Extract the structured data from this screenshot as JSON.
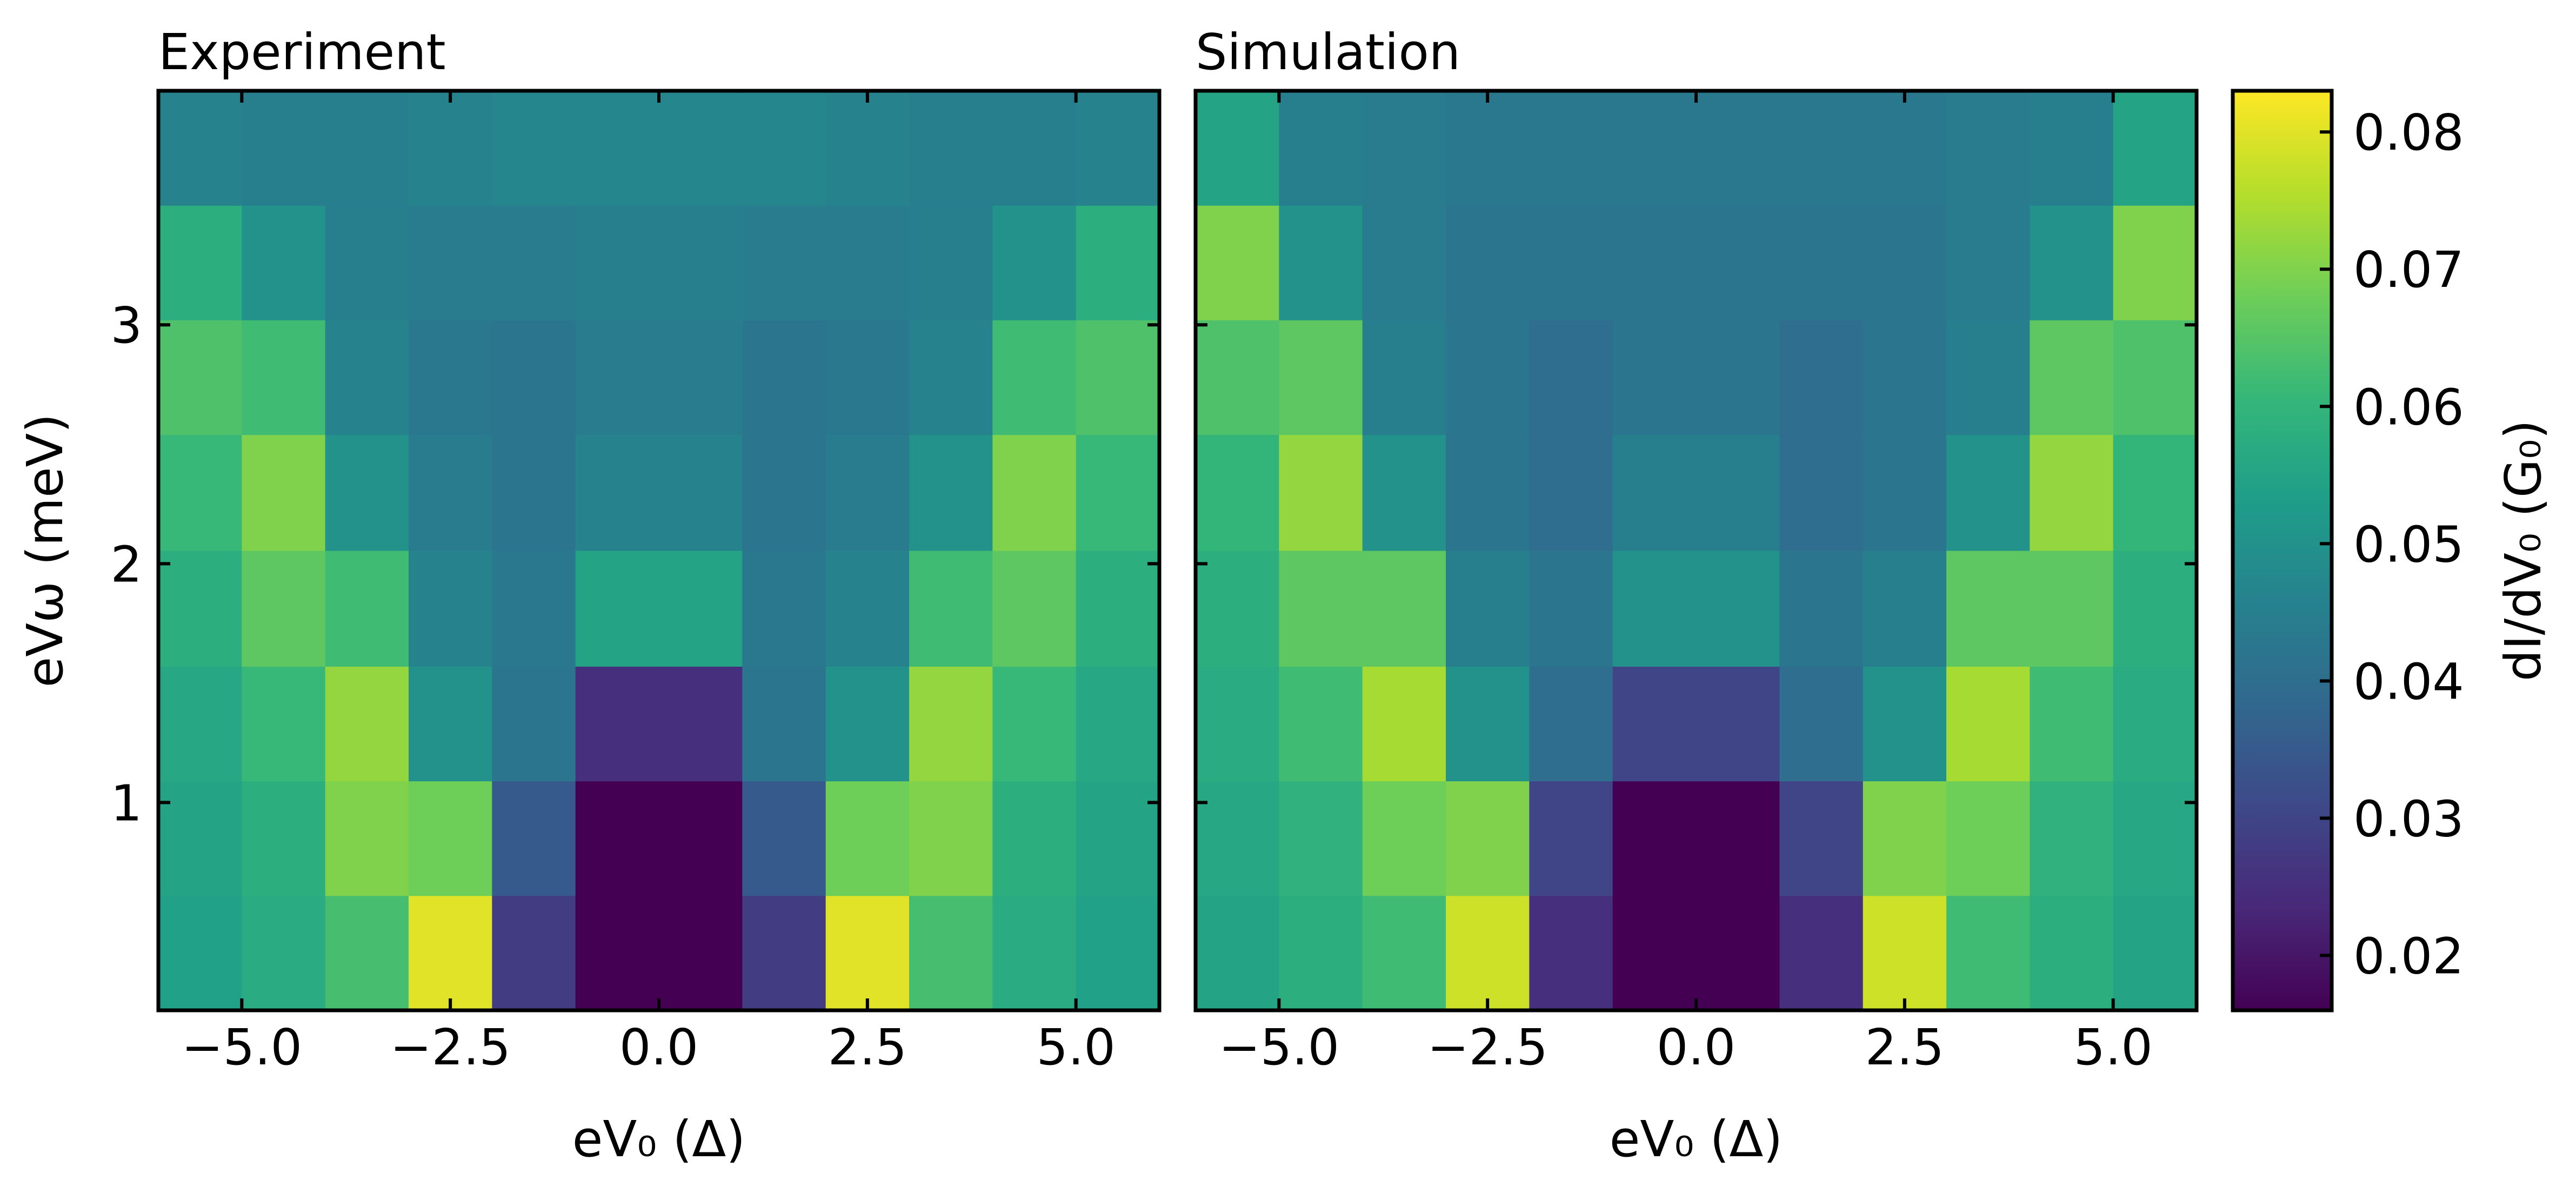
{
  "chart_data": [
    {
      "type": "heatmap",
      "title": "Experiment",
      "xlabel": "eV₀ (Δ)",
      "ylabel": "eVω (meV)",
      "x": [
        -5.5,
        -4.5,
        -3.5,
        -2.5,
        -1.5,
        -0.5,
        0.5,
        1.5,
        2.5,
        3.5,
        4.5,
        5.5
      ],
      "y": [
        0.37,
        0.85,
        1.33,
        1.81,
        2.3,
        2.78,
        3.26,
        3.74
      ],
      "values": [
        [
          0.054,
          0.057,
          0.063,
          0.08,
          0.028,
          0.016,
          0.016,
          0.028,
          0.08,
          0.063,
          0.057,
          0.054
        ],
        [
          0.055,
          0.058,
          0.07,
          0.068,
          0.035,
          0.016,
          0.016,
          0.035,
          0.068,
          0.07,
          0.058,
          0.055
        ],
        [
          0.056,
          0.061,
          0.072,
          0.05,
          0.042,
          0.025,
          0.025,
          0.042,
          0.05,
          0.072,
          0.061,
          0.056
        ],
        [
          0.058,
          0.066,
          0.062,
          0.046,
          0.043,
          0.055,
          0.055,
          0.043,
          0.046,
          0.062,
          0.066,
          0.058
        ],
        [
          0.061,
          0.07,
          0.05,
          0.044,
          0.042,
          0.046,
          0.046,
          0.042,
          0.044,
          0.05,
          0.07,
          0.061
        ],
        [
          0.064,
          0.062,
          0.046,
          0.043,
          0.042,
          0.044,
          0.044,
          0.042,
          0.043,
          0.046,
          0.062,
          0.064
        ],
        [
          0.058,
          0.05,
          0.045,
          0.044,
          0.044,
          0.045,
          0.045,
          0.044,
          0.044,
          0.045,
          0.05,
          0.058
        ],
        [
          0.046,
          0.045,
          0.045,
          0.046,
          0.047,
          0.047,
          0.047,
          0.047,
          0.046,
          0.045,
          0.045,
          0.046
        ]
      ],
      "xlim": [
        -6,
        6
      ],
      "ylim": [
        0.13,
        3.98
      ],
      "xticks": [
        {
          "value": -5,
          "label": "−5.0"
        },
        {
          "value": -2.5,
          "label": "−2.5"
        },
        {
          "value": 0,
          "label": "0.0"
        },
        {
          "value": 2.5,
          "label": "2.5"
        },
        {
          "value": 5,
          "label": "5.0"
        }
      ],
      "yticks": [
        1,
        2,
        3
      ]
    },
    {
      "type": "heatmap",
      "title": "Simulation",
      "xlabel": "eV₀ (Δ)",
      "x": [
        -5.5,
        -4.5,
        -3.5,
        -2.5,
        -1.5,
        -0.5,
        0.5,
        1.5,
        2.5,
        3.5,
        4.5,
        5.5
      ],
      "y": [
        0.37,
        0.85,
        1.33,
        1.81,
        2.3,
        2.78,
        3.26,
        3.74
      ],
      "values": [
        [
          0.055,
          0.058,
          0.062,
          0.078,
          0.025,
          0.016,
          0.016,
          0.025,
          0.078,
          0.062,
          0.058,
          0.055
        ],
        [
          0.056,
          0.059,
          0.068,
          0.07,
          0.03,
          0.016,
          0.016,
          0.03,
          0.07,
          0.068,
          0.059,
          0.056
        ],
        [
          0.057,
          0.062,
          0.074,
          0.05,
          0.04,
          0.03,
          0.03,
          0.04,
          0.05,
          0.074,
          0.062,
          0.057
        ],
        [
          0.058,
          0.066,
          0.066,
          0.045,
          0.042,
          0.05,
          0.05,
          0.042,
          0.045,
          0.066,
          0.066,
          0.058
        ],
        [
          0.06,
          0.072,
          0.05,
          0.042,
          0.04,
          0.045,
          0.045,
          0.04,
          0.042,
          0.05,
          0.072,
          0.06
        ],
        [
          0.064,
          0.066,
          0.045,
          0.042,
          0.04,
          0.042,
          0.042,
          0.04,
          0.042,
          0.045,
          0.066,
          0.064
        ],
        [
          0.07,
          0.05,
          0.044,
          0.042,
          0.042,
          0.042,
          0.042,
          0.042,
          0.042,
          0.044,
          0.05,
          0.07
        ],
        [
          0.055,
          0.045,
          0.044,
          0.043,
          0.043,
          0.043,
          0.043,
          0.043,
          0.043,
          0.044,
          0.045,
          0.055
        ]
      ],
      "xlim": [
        -6,
        6
      ],
      "ylim": [
        0.13,
        3.98
      ],
      "xticks": [
        {
          "value": -5,
          "label": "−5.0"
        },
        {
          "value": -2.5,
          "label": "−2.5"
        },
        {
          "value": 0,
          "label": "0.0"
        },
        {
          "value": 2.5,
          "label": "2.5"
        },
        {
          "value": 5,
          "label": "5.0"
        }
      ],
      "yticks": [
        1,
        2,
        3
      ]
    }
  ],
  "colorbar": {
    "label": "dI/dV₀ (G₀)",
    "colormap": "viridis",
    "clim": [
      0.016,
      0.083
    ],
    "ticks": [
      0.02,
      0.03,
      0.04,
      0.05,
      0.06,
      0.07,
      0.08
    ]
  }
}
